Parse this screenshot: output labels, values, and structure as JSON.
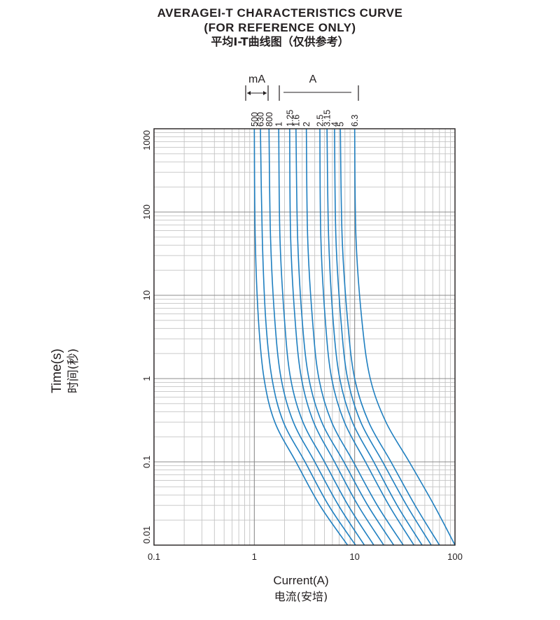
{
  "header": {
    "title_en_1": "AVERAGEI-T CHARACTERISTICS CURVE",
    "title_en_2": "(FOR REFERENCE ONLY)",
    "title_cn": "平均I-T曲线图（仅供参考）"
  },
  "chart_data": {
    "type": "line",
    "xscale": "log",
    "yscale": "log",
    "xlim": [
      0.1,
      100
    ],
    "ylim": [
      0.01,
      1000
    ],
    "grid": true,
    "xlabel": "Current(A)",
    "xlabel_cn": "电流(安培)",
    "ylabel": "Time(s)",
    "ylabel_cn": "时间(秒)",
    "x_ticks": [
      "0.1",
      "1",
      "10",
      "100"
    ],
    "y_ticks": [
      "0.01",
      "0.1",
      "1",
      "10",
      "100",
      "1000"
    ],
    "unit_labels": {
      "milliamp": "mA",
      "amp": "A"
    },
    "series_color": "#1f7fc0",
    "series": [
      {
        "name": "500",
        "points": [
          [
            1.0,
            1000
          ],
          [
            1.02,
            50
          ],
          [
            1.1,
            5
          ],
          [
            1.25,
            1
          ],
          [
            1.6,
            0.3
          ],
          [
            2.6,
            0.1
          ],
          [
            4.5,
            0.03
          ],
          [
            8.5,
            0.01
          ]
        ]
      },
      {
        "name": "630",
        "points": [
          [
            1.15,
            1000
          ],
          [
            1.2,
            50
          ],
          [
            1.3,
            5
          ],
          [
            1.5,
            1
          ],
          [
            1.95,
            0.3
          ],
          [
            3.2,
            0.1
          ],
          [
            5.5,
            0.03
          ],
          [
            10.2,
            0.01
          ]
        ]
      },
      {
        "name": "800",
        "points": [
          [
            1.4,
            1000
          ],
          [
            1.45,
            50
          ],
          [
            1.6,
            5
          ],
          [
            1.85,
            1
          ],
          [
            2.45,
            0.3
          ],
          [
            4.0,
            0.1
          ],
          [
            6.9,
            0.03
          ],
          [
            12.5,
            0.01
          ]
        ]
      },
      {
        "name": "1",
        "points": [
          [
            1.75,
            1000
          ],
          [
            1.8,
            50
          ],
          [
            2.0,
            5
          ],
          [
            2.3,
            1
          ],
          [
            3.05,
            0.3
          ],
          [
            5.0,
            0.1
          ],
          [
            8.6,
            0.03
          ],
          [
            15.5,
            0.01
          ]
        ]
      },
      {
        "name": "1.25",
        "points": [
          [
            2.25,
            1000
          ],
          [
            2.3,
            50
          ],
          [
            2.55,
            5
          ],
          [
            2.95,
            1
          ],
          [
            3.9,
            0.3
          ],
          [
            6.3,
            0.1
          ],
          [
            10.8,
            0.03
          ],
          [
            19.5,
            0.01
          ]
        ]
      },
      {
        "name": "1.6",
        "points": [
          [
            2.6,
            1000
          ],
          [
            2.7,
            50
          ],
          [
            3.0,
            5
          ],
          [
            3.5,
            1
          ],
          [
            4.7,
            0.3
          ],
          [
            7.8,
            0.1
          ],
          [
            13.5,
            0.03
          ],
          [
            24.5,
            0.01
          ]
        ]
      },
      {
        "name": "2",
        "points": [
          [
            3.3,
            1000
          ],
          [
            3.4,
            50
          ],
          [
            3.8,
            5
          ],
          [
            4.4,
            1
          ],
          [
            5.9,
            0.3
          ],
          [
            9.7,
            0.1
          ],
          [
            16.8,
            0.03
          ],
          [
            30.5,
            0.01
          ]
        ]
      },
      {
        "name": "2.5",
        "points": [
          [
            4.5,
            1000
          ],
          [
            4.6,
            50
          ],
          [
            5.1,
            5
          ],
          [
            5.9,
            1
          ],
          [
            7.9,
            0.3
          ],
          [
            12.8,
            0.1
          ],
          [
            22.0,
            0.03
          ],
          [
            39.0,
            0.01
          ]
        ]
      },
      {
        "name": "3.15",
        "points": [
          [
            5.3,
            1000
          ],
          [
            5.5,
            50
          ],
          [
            6.1,
            5
          ],
          [
            7.1,
            1
          ],
          [
            9.5,
            0.3
          ],
          [
            15.5,
            0.1
          ],
          [
            26.5,
            0.03
          ],
          [
            47.0,
            0.01
          ]
        ]
      },
      {
        "name": "4",
        "points": [
          [
            6.3,
            1000
          ],
          [
            6.5,
            50
          ],
          [
            7.3,
            5
          ],
          [
            8.5,
            1
          ],
          [
            11.5,
            0.3
          ],
          [
            19.0,
            0.1
          ],
          [
            33.0,
            0.03
          ],
          [
            58.0,
            0.01
          ]
        ]
      },
      {
        "name": "5",
        "points": [
          [
            7.2,
            1000
          ],
          [
            7.5,
            50
          ],
          [
            8.5,
            5
          ],
          [
            10.0,
            1
          ],
          [
            13.8,
            0.3
          ],
          [
            23.0,
            0.1
          ],
          [
            40.0,
            0.03
          ],
          [
            70.0,
            0.01
          ]
        ]
      },
      {
        "name": "6.3",
        "points": [
          [
            10.0,
            1000
          ],
          [
            10.3,
            50
          ],
          [
            11.8,
            5
          ],
          [
            14.3,
            1
          ],
          [
            20.5,
            0.3
          ],
          [
            35.0,
            0.1
          ],
          [
            62.0,
            0.03
          ],
          [
            100.0,
            0.01
          ]
        ]
      }
    ]
  }
}
